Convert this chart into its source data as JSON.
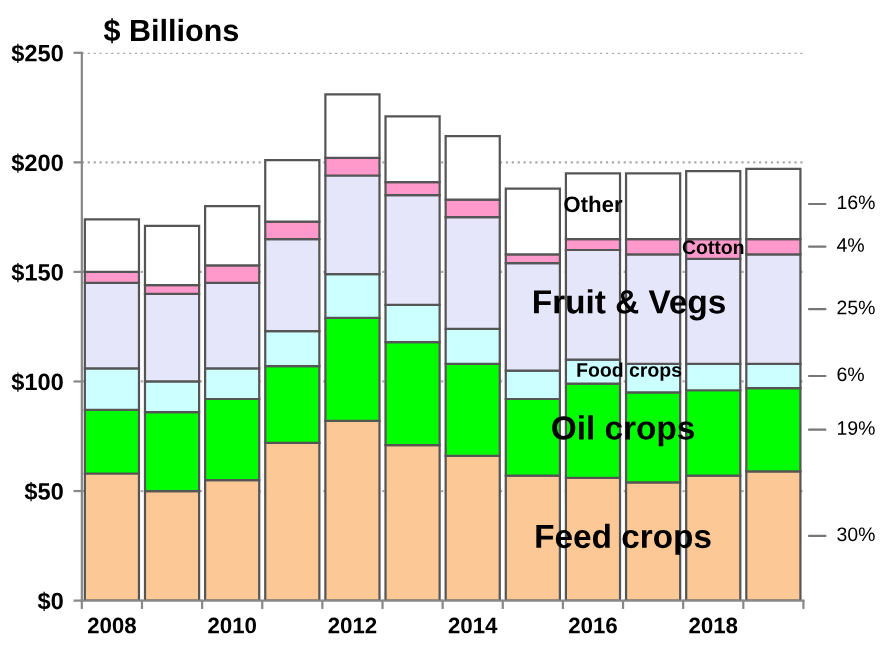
{
  "chart_data": {
    "type": "bar",
    "stacked": true,
    "title": "$ Billions",
    "categories": [
      "2008",
      null,
      "2010",
      null,
      "2012",
      null,
      "2014",
      null,
      "2016",
      null,
      "2018",
      null
    ],
    "series": [
      {
        "name": "Feed crops",
        "color": "#fcc896",
        "values": [
          58,
          50,
          55,
          72,
          82,
          71,
          66,
          57,
          56,
          54,
          57,
          59
        ]
      },
      {
        "name": "Oil crops",
        "color": "#00ff00",
        "values": [
          29,
          36,
          37,
          35,
          47,
          47,
          42,
          35,
          43,
          41,
          39,
          38
        ]
      },
      {
        "name": "Food crops",
        "color": "#ccffff",
        "values": [
          19,
          14,
          14,
          16,
          20,
          17,
          16,
          13,
          11,
          13,
          12,
          11
        ]
      },
      {
        "name": "Fruit & Vegs",
        "color": "#e6e6fa",
        "values": [
          39,
          40,
          39,
          42,
          45,
          50,
          51,
          49,
          50,
          50,
          48,
          50
        ]
      },
      {
        "name": "Cotton",
        "color": "#ff99cc",
        "values": [
          5,
          4,
          8,
          8,
          8,
          6,
          8,
          4,
          5,
          7,
          9,
          7
        ]
      },
      {
        "name": "Other",
        "color": "#ffffff",
        "values": [
          24,
          27,
          27,
          28,
          29,
          30,
          29,
          30,
          30,
          30,
          31,
          32
        ]
      }
    ],
    "ylim": [
      0,
      250
    ],
    "yticks": [
      {
        "value": 0,
        "label": "$0"
      },
      {
        "value": 50,
        "label": "$50"
      },
      {
        "value": 100,
        "label": "$100"
      },
      {
        "value": 150,
        "label": "$150"
      },
      {
        "value": 200,
        "label": "$200"
      },
      {
        "value": 250,
        "label": "$250"
      }
    ],
    "grid": "y",
    "legend": false,
    "annotations": [
      "16%",
      "4%",
      "25%",
      "6%",
      "19%",
      "30%"
    ]
  }
}
